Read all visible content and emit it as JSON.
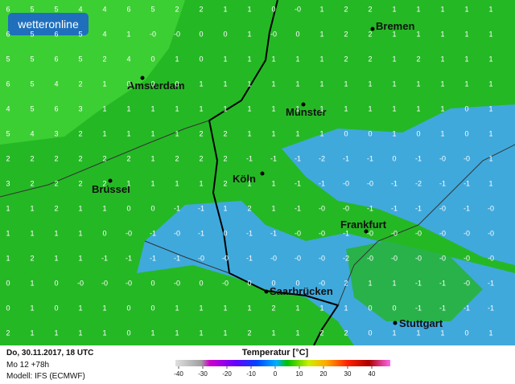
{
  "logo": "wetteronline",
  "cities": [
    "Bremen",
    "Amsterdam",
    "Münster",
    "Köln",
    "Brüssel",
    "Frankfurt",
    "Saarbrücken",
    "Stuttgart"
  ],
  "grid": [
    [
      "6",
      "5",
      "5",
      "4",
      "4",
      "6",
      "5",
      "2",
      "2",
      "1",
      "1",
      "0",
      "-0",
      "1",
      "2",
      "2",
      "1",
      "1",
      "1",
      "1",
      "1"
    ],
    [
      "6",
      "5",
      "6",
      "5",
      "4",
      "1",
      "-0",
      "-0",
      "0",
      "0",
      "1",
      "-0",
      "0",
      "1",
      "2",
      "2",
      "1",
      "1",
      "1",
      "1",
      "1"
    ],
    [
      "5",
      "5",
      "6",
      "5",
      "2",
      "4",
      "0",
      "1",
      "0",
      "1",
      "1",
      "1",
      "1",
      "1",
      "2",
      "2",
      "1",
      "2",
      "1",
      "1",
      "1"
    ],
    [
      "6",
      "5",
      "4",
      "2",
      "1",
      "0",
      "0",
      "0",
      "1",
      "1",
      "1",
      "1",
      "1",
      "1",
      "1",
      "1",
      "1",
      "1",
      "1",
      "1",
      "1"
    ],
    [
      "4",
      "5",
      "6",
      "3",
      "1",
      "1",
      "1",
      "1",
      "1",
      "1",
      "1",
      "1",
      "1",
      "1",
      "1",
      "1",
      "1",
      "1",
      "1",
      "0",
      "1"
    ],
    [
      "5",
      "4",
      "3",
      "2",
      "1",
      "1",
      "1",
      "1",
      "2",
      "2",
      "1",
      "1",
      "1",
      "1",
      "0",
      "0",
      "1",
      "0",
      "1",
      "0",
      "1"
    ],
    [
      "2",
      "2",
      "2",
      "2",
      "2",
      "2",
      "1",
      "2",
      "2",
      "2",
      "-1",
      "-1",
      "-1",
      "-2",
      "-1",
      "-1",
      "0",
      "-1",
      "-0",
      "-0",
      "1"
    ],
    [
      "3",
      "2",
      "2",
      "2",
      "2",
      "1",
      "1",
      "1",
      "1",
      "2",
      "1",
      "1",
      "-1",
      "-1",
      "-0",
      "-0",
      "-1",
      "-2",
      "-1",
      "-1",
      "1"
    ],
    [
      "1",
      "1",
      "2",
      "1",
      "1",
      "0",
      "0",
      "-1",
      "-1",
      "1",
      "2",
      "1",
      "-1",
      "-0",
      "-0",
      "-1",
      "-1",
      "-1",
      "-0",
      "-1",
      "-0"
    ],
    [
      "1",
      "1",
      "1",
      "1",
      "0",
      "-0",
      "-1",
      "-0",
      "-1",
      "0",
      "-1",
      "-1",
      "-0",
      "-0",
      "-1",
      "-0",
      "-0",
      "-0",
      "-0",
      "-0",
      "-0"
    ],
    [
      "1",
      "2",
      "1",
      "1",
      "-1",
      "-1",
      "-1",
      "-1",
      "-0",
      "-0",
      "-1",
      "-0",
      "-0",
      "-0",
      "-2",
      "-0",
      "-0",
      "-0",
      "-0",
      "-0",
      "-0"
    ],
    [
      "0",
      "1",
      "0",
      "-0",
      "-0",
      "-0",
      "0",
      "-0",
      "0",
      "-0",
      "0",
      "0",
      "0",
      "-0",
      "2",
      "1",
      "1",
      "-1",
      "-1",
      "-0",
      "-1"
    ],
    [
      "0",
      "1",
      "0",
      "1",
      "1",
      "0",
      "0",
      "1",
      "1",
      "1",
      "1",
      "2",
      "1",
      "1",
      "1",
      "0",
      "0",
      "-1",
      "-1",
      "-1",
      "-1"
    ],
    [
      "2",
      "1",
      "1",
      "1",
      "1",
      "0",
      "1",
      "1",
      "1",
      "1",
      "2",
      "1",
      "1",
      "2",
      "2",
      "0",
      "1",
      "1",
      "1",
      "0",
      "1"
    ]
  ],
  "footer": {
    "date": "Do, 30.11.2017, 18 UTC",
    "run": "Mo 12 +78h",
    "model": "Modell: IFS (ECMWF)"
  },
  "legend": {
    "title": "Temperatur [°C]",
    "ticks": [
      -40,
      -30,
      -20,
      -10,
      0,
      10,
      20,
      30,
      40
    ]
  }
}
